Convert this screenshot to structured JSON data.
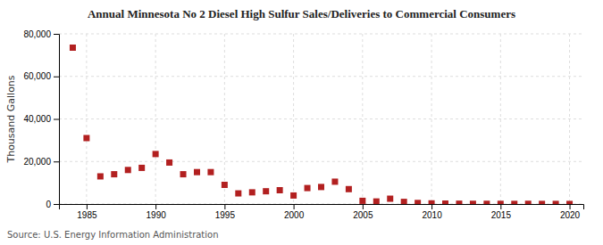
{
  "chart_data": {
    "type": "scatter",
    "title": "Annual Minnesota No 2 Diesel High Sulfur Sales/Deliveries to Commercial Consumers",
    "ylabel": "Thousand Gallons",
    "source": "Source: U.S. Energy Information Administration",
    "color": "#b22020",
    "marker": "square",
    "grid": true,
    "xlim": [
      1983,
      2021
    ],
    "ylim": [
      0,
      80000
    ],
    "xticks": [
      1985,
      1990,
      1995,
      2000,
      2005,
      2010,
      2015,
      2020
    ],
    "yticks": [
      0,
      {
        "value": 20000,
        "label": "20,000"
      },
      {
        "value": 40000,
        "label": "40,000"
      },
      {
        "value": 60000,
        "label": "60,000"
      },
      {
        "value": 80000,
        "label": "80,000"
      }
    ],
    "x": [
      1984,
      1985,
      1986,
      1987,
      1988,
      1989,
      1990,
      1991,
      1992,
      1993,
      1994,
      1995,
      1996,
      1997,
      1998,
      1999,
      2000,
      2001,
      2002,
      2003,
      2004,
      2005,
      2006,
      2007,
      2008,
      2009,
      2010,
      2011,
      2012,
      2013,
      2014,
      2015,
      2016,
      2017,
      2018,
      2019,
      2020
    ],
    "values": [
      73500,
      31000,
      13000,
      14000,
      16000,
      17000,
      23500,
      19500,
      14000,
      15000,
      15000,
      9000,
      5000,
      5500,
      6000,
      6500,
      4000,
      7500,
      8000,
      10500,
      7000,
      1500,
      1200,
      2500,
      1000,
      500,
      300,
      200,
      150,
      100,
      100,
      80,
      60,
      100,
      50,
      50,
      30
    ]
  }
}
